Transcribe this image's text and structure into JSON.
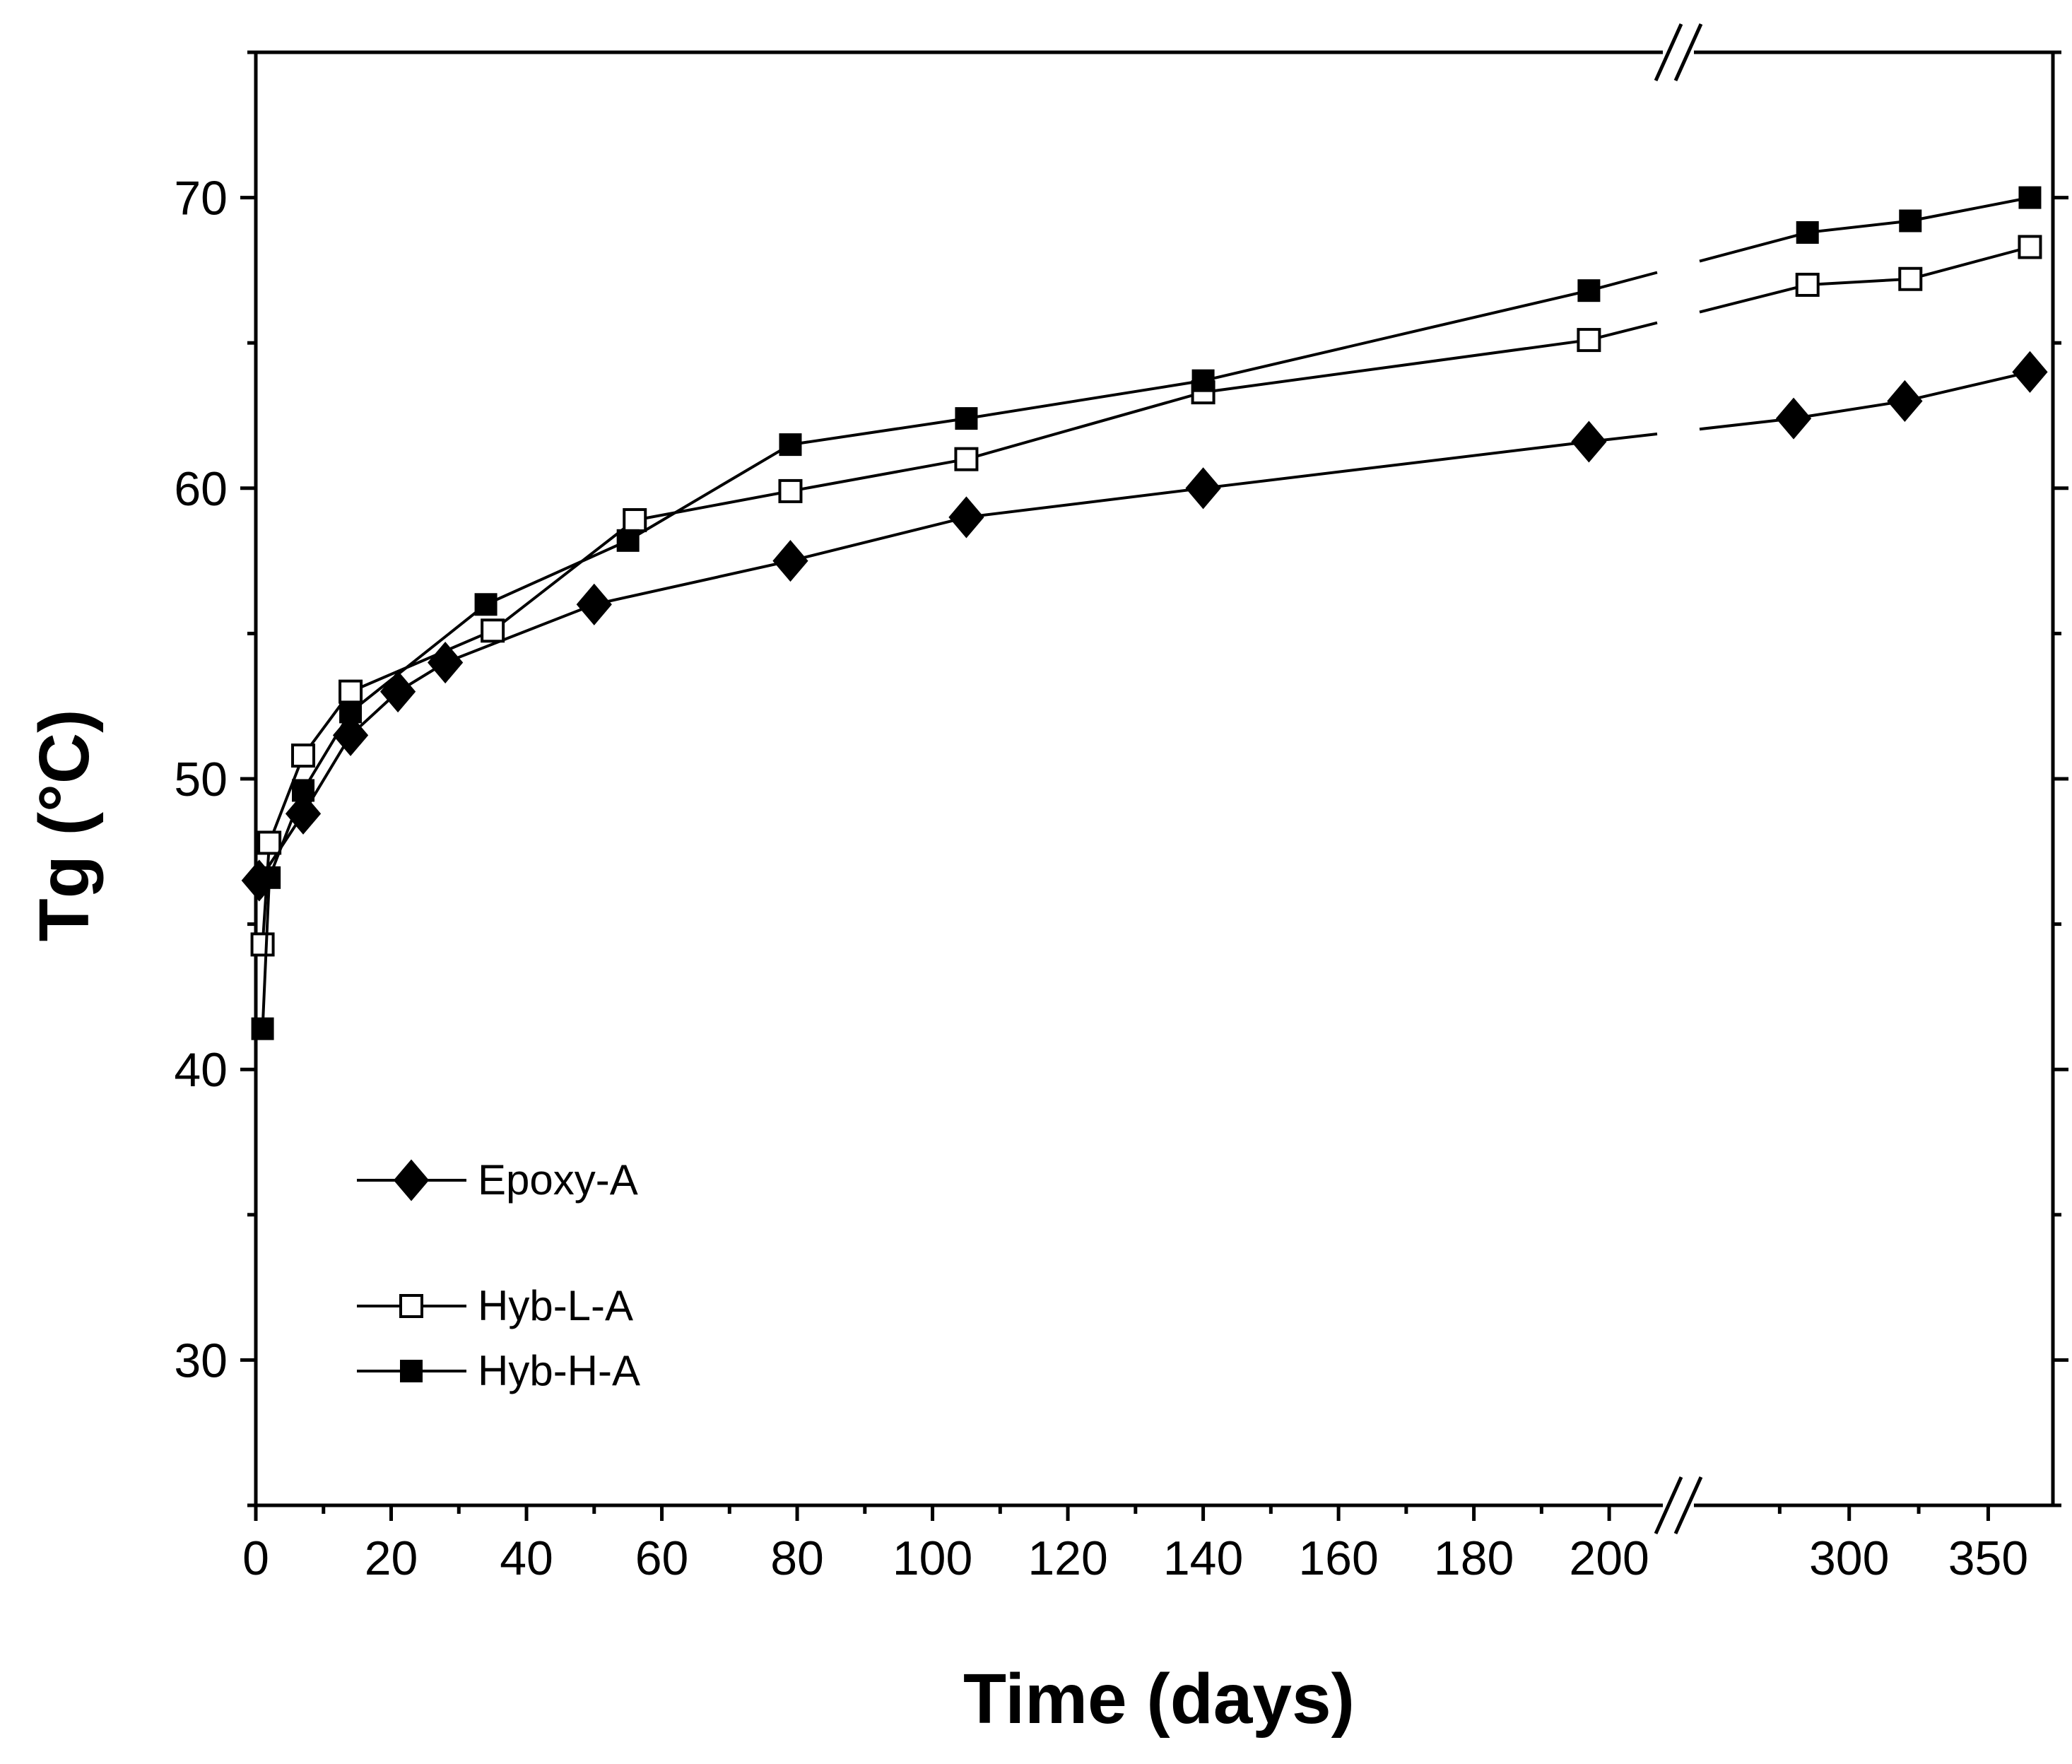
{
  "chart_data": {
    "type": "line",
    "title": "",
    "xlabel": "Time (days)",
    "ylabel": "Tg (°C)",
    "ylim": [
      25,
      75
    ],
    "y_ticks": [
      "30",
      "40",
      "50",
      "60",
      "70"
    ],
    "x_axis": {
      "broken": true,
      "segment1": {
        "range": [
          0,
          205
        ],
        "ticks": [
          "0",
          "20",
          "40",
          "60",
          "80",
          "100",
          "120",
          "140",
          "160",
          "180",
          "200"
        ]
      },
      "segment2": {
        "range": [
          250,
          372
        ],
        "ticks": [
          "300",
          "350"
        ]
      }
    },
    "series": [
      {
        "name": "Epoxy-A",
        "marker": "diamond-filled",
        "x": [
          0.5,
          7,
          14,
          21,
          28,
          50,
          79,
          105,
          140,
          197,
          280,
          320,
          365
        ],
        "y": [
          46.5,
          48.8,
          51.5,
          53.0,
          54.0,
          56.0,
          57.5,
          59.0,
          60.0,
          61.6,
          62.4,
          63.0,
          64.0
        ]
      },
      {
        "name": "Hyb-L-A",
        "marker": "square-open",
        "x": [
          1,
          2,
          7,
          14,
          35,
          56,
          79,
          105,
          140,
          197,
          285,
          322,
          365
        ],
        "y": [
          44.3,
          47.8,
          50.8,
          53.0,
          55.1,
          58.9,
          59.9,
          61.0,
          63.3,
          65.1,
          67.0,
          67.2,
          68.3
        ]
      },
      {
        "name": "Hyb-H-A",
        "marker": "square-filled",
        "x": [
          1,
          2,
          7,
          14,
          34,
          55,
          79,
          105,
          140,
          197,
          285,
          322,
          365
        ],
        "y": [
          41.4,
          46.6,
          49.6,
          52.3,
          56.0,
          58.2,
          61.5,
          62.4,
          63.7,
          66.8,
          68.8,
          69.2,
          70.0
        ]
      }
    ],
    "legend": {
      "placement": "bottom-left",
      "entries": [
        "Epoxy-A",
        "Hyb-L-A",
        "Hyb-H-A"
      ]
    }
  }
}
